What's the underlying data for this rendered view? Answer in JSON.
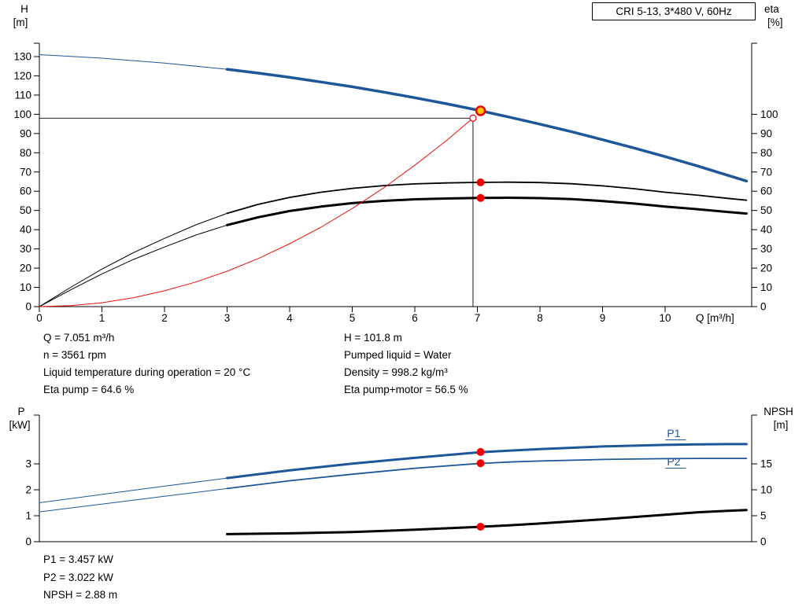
{
  "title_box": "CRI 5-13, 3*480 V, 60Hz",
  "colors": {
    "curve_blue": "#1e5799",
    "curve_black": "#000000",
    "curve_red": "#e81010",
    "dot_red": "#ee0000",
    "duty_fill": "#ffc800",
    "axis": "#000000"
  },
  "info_top": {
    "left": [
      "Q = 7.051 m³/h",
      "n = 3561 rpm",
      "Liquid temperature during operation = 20 °C",
      "Eta pump = 64.6 %"
    ],
    "right": [
      "H = 101.8 m",
      "Pumped liquid = Water",
      "Density = 998.2 kg/m³",
      "Eta pump+motor = 56.5 %"
    ]
  },
  "info_bottom": [
    "P1 = 3.457 kW",
    "P2 = 3.022 kW",
    "NPSH = 2.88 m"
  ],
  "chart_data": [
    {
      "id": "top",
      "type": "line",
      "title": "CRI 5-13, 3*480 V, 60Hz",
      "x_axis": {
        "label": "Q [m³/h]",
        "min": 0,
        "max": 11.35,
        "ticks": [
          0,
          1,
          2,
          3,
          4,
          5,
          6,
          7,
          8,
          9,
          10
        ]
      },
      "y_left": {
        "label": [
          "H",
          "[m]"
        ],
        "min": 0,
        "max": 137,
        "ticks": [
          0,
          10,
          20,
          30,
          40,
          50,
          60,
          70,
          80,
          90,
          100,
          110,
          120,
          130
        ]
      },
      "y_right": {
        "label": [
          "eta",
          "[%]"
        ],
        "min": 0,
        "max": 137,
        "scale": 1,
        "ticks": [
          0,
          10,
          20,
          30,
          40,
          50,
          60,
          70,
          80,
          90,
          100
        ]
      },
      "series": [
        {
          "name": "head-curve-thin",
          "color": "blue",
          "width": 1,
          "points": [
            [
              0,
              131
            ],
            [
              1,
              129.2
            ],
            [
              2,
              126.6
            ],
            [
              3,
              123.4
            ]
          ]
        },
        {
          "name": "head-curve",
          "color": "blue",
          "width": 3.5,
          "points": [
            [
              3,
              123.4
            ],
            [
              3.5,
              121.4
            ],
            [
              4,
              119.2
            ],
            [
              4.5,
              116.8
            ],
            [
              5,
              114.3
            ],
            [
              5.5,
              111.5
            ],
            [
              6,
              108.6
            ],
            [
              6.5,
              105.5
            ],
            [
              7,
              102.2
            ],
            [
              7.5,
              98.6
            ],
            [
              8,
              94.9
            ],
            [
              8.5,
              91
            ],
            [
              9,
              86.8
            ],
            [
              9.5,
              82.5
            ],
            [
              10,
              78
            ],
            [
              10.5,
              73.3
            ],
            [
              11,
              68.3
            ],
            [
              11.3,
              65.3
            ]
          ]
        },
        {
          "name": "eta-pump-curve-thin",
          "color": "black",
          "width": 1,
          "points": [
            [
              0,
              0
            ],
            [
              0.5,
              10
            ],
            [
              1,
              19.5
            ],
            [
              1.5,
              28
            ],
            [
              2,
              35.5
            ],
            [
              2.5,
              42.5
            ],
            [
              3,
              48.5
            ]
          ]
        },
        {
          "name": "eta-pump-curve",
          "color": "black",
          "width": 1.8,
          "points": [
            [
              3,
              48.5
            ],
            [
              3.5,
              53.2
            ],
            [
              4,
              56.8
            ],
            [
              4.5,
              59.5
            ],
            [
              5,
              61.5
            ],
            [
              5.5,
              62.9
            ],
            [
              6,
              63.8
            ],
            [
              6.5,
              64.3
            ],
            [
              7,
              64.6
            ],
            [
              7.5,
              64.7
            ],
            [
              8,
              64.5
            ],
            [
              8.5,
              63.9
            ],
            [
              9,
              62.8
            ],
            [
              9.5,
              61.3
            ],
            [
              10,
              59.5
            ],
            [
              10.5,
              58
            ],
            [
              11,
              56.3
            ],
            [
              11.3,
              55.3
            ]
          ]
        },
        {
          "name": "eta-pump-motor-curve-thin",
          "color": "black",
          "width": 1,
          "points": [
            [
              0,
              0
            ],
            [
              0.5,
              8.7
            ],
            [
              1,
              17
            ],
            [
              1.5,
              24.5
            ],
            [
              2,
              31
            ],
            [
              2.5,
              37.2
            ],
            [
              3,
              42.4
            ]
          ]
        },
        {
          "name": "eta-pump-motor-curve",
          "color": "black",
          "width": 3,
          "points": [
            [
              3,
              42.4
            ],
            [
              3.5,
              46.5
            ],
            [
              4,
              49.7
            ],
            [
              4.5,
              52
            ],
            [
              5,
              53.8
            ],
            [
              5.5,
              55
            ],
            [
              6,
              55.8
            ],
            [
              6.5,
              56.2
            ],
            [
              7,
              56.5
            ],
            [
              7.5,
              56.6
            ],
            [
              8,
              56.4
            ],
            [
              8.5,
              55.9
            ],
            [
              9,
              54.9
            ],
            [
              9.5,
              53.6
            ],
            [
              10,
              52
            ],
            [
              10.5,
              50.7
            ],
            [
              11,
              49.2
            ],
            [
              11.3,
              48.4
            ]
          ]
        },
        {
          "name": "system-curve",
          "color": "red",
          "width": 1,
          "points": [
            [
              0,
              0
            ],
            [
              0.5,
              0.5
            ],
            [
              1,
              2
            ],
            [
              1.5,
              4.6
            ],
            [
              2,
              8.2
            ],
            [
              2.5,
              12.8
            ],
            [
              3,
              18.4
            ],
            [
              3.5,
              25
            ],
            [
              4,
              32.7
            ],
            [
              4.5,
              41.3
            ],
            [
              5,
              51
            ],
            [
              5.5,
              61.7
            ],
            [
              6,
              73.5
            ],
            [
              6.5,
              86.2
            ],
            [
              6.93,
              98
            ]
          ]
        }
      ],
      "crosshair": {
        "q": 6.93,
        "h": 98
      },
      "markers": [
        {
          "type": "open",
          "q": 6.93,
          "v": 98
        },
        {
          "type": "duty",
          "q": 7.051,
          "v": 101.8
        },
        {
          "type": "dot",
          "q": 7.051,
          "v": 64.6
        },
        {
          "type": "dot",
          "q": 7.051,
          "v": 56.5
        }
      ],
      "duty_point": {
        "Q_m3h": 7.051,
        "H_m": 101.8,
        "n_rpm": 3561,
        "eta_pump_pct": 64.6,
        "eta_pump_motor_pct": 56.5
      }
    },
    {
      "id": "bottom",
      "type": "line",
      "x_axis": {
        "label": "",
        "min": 0,
        "max": 11.35,
        "ticks": []
      },
      "y_left": {
        "label": [
          "P",
          "[kW]"
        ],
        "min": 0,
        "max": 4.85,
        "ticks": [
          0,
          1,
          2,
          3
        ]
      },
      "y_right": {
        "label": [
          "NPSH",
          "[m]"
        ],
        "min": 0,
        "scale": 5,
        "ticks": [
          0,
          5,
          10,
          15
        ]
      },
      "series": [
        {
          "name": "p1-curve-thin",
          "color": "blue",
          "width": 1,
          "points": [
            [
              0,
              1.5
            ],
            [
              1,
              1.82
            ],
            [
              2,
              2.14
            ],
            [
              3,
              2.45
            ]
          ]
        },
        {
          "name": "p1-curve",
          "color": "blue",
          "width": 3,
          "points": [
            [
              3,
              2.45
            ],
            [
              4,
              2.75
            ],
            [
              5,
              3.01
            ],
            [
              6,
              3.23
            ],
            [
              7,
              3.44
            ],
            [
              7.5,
              3.51
            ],
            [
              8,
              3.57
            ],
            [
              9,
              3.67
            ],
            [
              10,
              3.73
            ],
            [
              10.5,
              3.75
            ],
            [
              11,
              3.76
            ],
            [
              11.3,
              3.76
            ]
          ]
        },
        {
          "name": "p2-curve-thin",
          "color": "blue",
          "width": 1,
          "points": [
            [
              0,
              1.15
            ],
            [
              1,
              1.45
            ],
            [
              2,
              1.75
            ],
            [
              3,
              2.05
            ]
          ]
        },
        {
          "name": "p2-curve",
          "color": "blue",
          "width": 1.8,
          "points": [
            [
              3,
              2.05
            ],
            [
              4,
              2.35
            ],
            [
              5,
              2.6
            ],
            [
              6,
              2.83
            ],
            [
              7,
              3.01
            ],
            [
              7.5,
              3.07
            ],
            [
              8,
              3.11
            ],
            [
              9,
              3.17
            ],
            [
              10,
              3.2
            ],
            [
              10.5,
              3.21
            ],
            [
              11,
              3.21
            ],
            [
              11.3,
              3.21
            ]
          ]
        },
        {
          "name": "npsh-curve",
          "color": "black",
          "width": 3,
          "axis": "right",
          "points": [
            [
              3,
              1.45
            ],
            [
              4,
              1.6
            ],
            [
              5,
              1.85
            ],
            [
              6,
              2.3
            ],
            [
              7,
              2.85
            ],
            [
              7.5,
              3.15
            ],
            [
              8,
              3.5
            ],
            [
              9,
              4.3
            ],
            [
              10,
              5.2
            ],
            [
              10.5,
              5.65
            ],
            [
              11,
              5.95
            ],
            [
              11.3,
              6.1
            ]
          ]
        }
      ],
      "markers": [
        {
          "type": "dot",
          "q": 7.051,
          "v": 3.457
        },
        {
          "type": "dot",
          "q": 7.051,
          "v": 3.022
        },
        {
          "type": "dot",
          "q": 7.051,
          "v": 2.88,
          "axis": "right"
        }
      ],
      "series_labels": [
        {
          "text": "P1",
          "q": 10.03,
          "v": 4.03,
          "underline": true
        },
        {
          "text": "P2",
          "q": 10.03,
          "v": 2.94,
          "underline": true
        }
      ],
      "duty_point": {
        "P1_kW": 3.457,
        "P2_kW": 3.022,
        "NPSH_m": 2.88
      }
    }
  ]
}
